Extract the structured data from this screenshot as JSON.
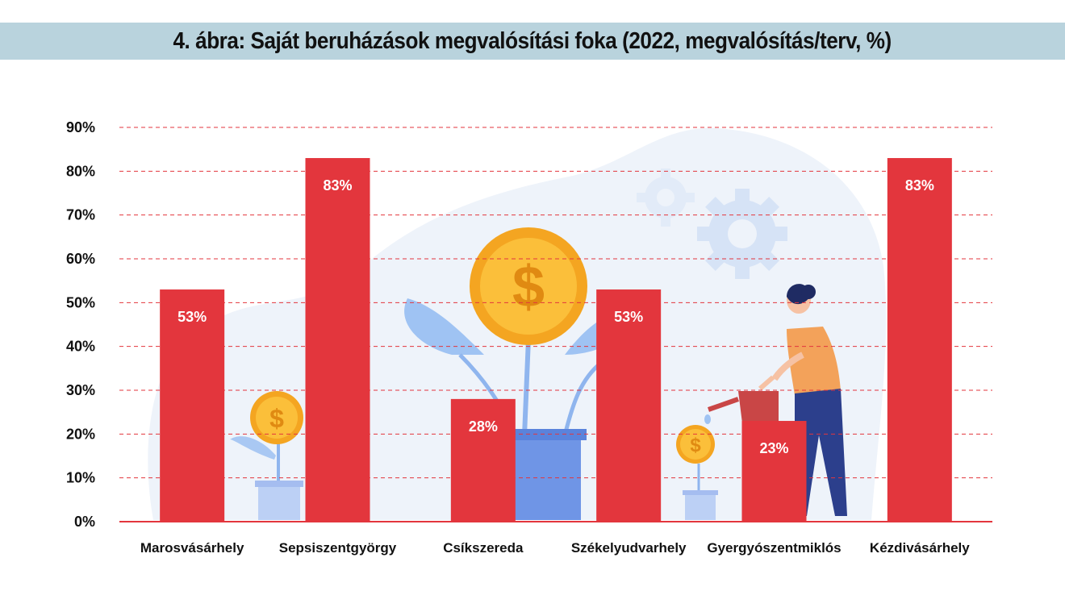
{
  "header": {
    "title": "4. ábra: Saját beruházások megvalósítási foka (2022, megvalósítás/terv, %)"
  },
  "chart_data": {
    "type": "bar",
    "title": "4. ábra: Saját beruházások megvalósítási foka (2022, megvalósítás/terv, %)",
    "categories": [
      "Marosvásárhely",
      "Sepsiszentgyörgy",
      "Csíkszereda",
      "Székelyudvarhely",
      "Gyergyószentmiklós",
      "Kézdivásárhely"
    ],
    "values": [
      53,
      83,
      28,
      53,
      23,
      83
    ],
    "data_labels": [
      "53%",
      "83%",
      "28%",
      "53%",
      "23%",
      "83%"
    ],
    "yticks": [
      0,
      10,
      20,
      30,
      40,
      50,
      60,
      70,
      80,
      90
    ],
    "ytick_labels": [
      "0%",
      "10%",
      "20%",
      "30%",
      "40%",
      "50%",
      "60%",
      "70%",
      "80%",
      "90%"
    ],
    "ylim": [
      0,
      90
    ],
    "xlabel": "",
    "ylabel": "",
    "grid": true,
    "colors": {
      "bar": "#e3363d",
      "grid": "#e3363d",
      "axis": "#e3363d",
      "label": "#ffffff"
    }
  }
}
